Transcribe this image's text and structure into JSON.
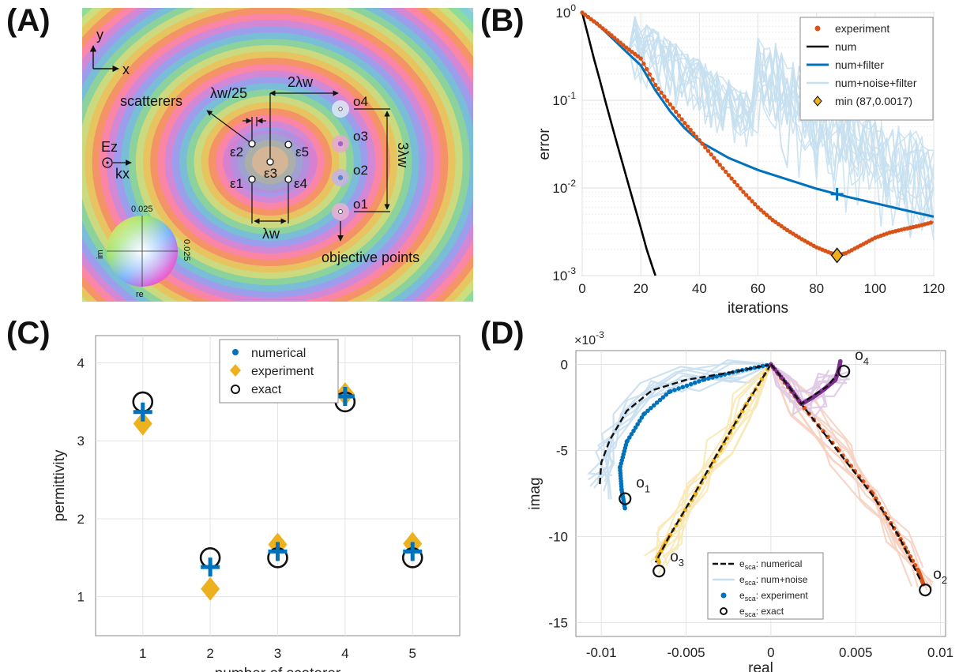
{
  "panels": {
    "A": {
      "label": "(A)",
      "axis_y": "y",
      "axis_x": "x",
      "scatterers_label": "scatterers",
      "spacing_small": "λw/25",
      "spacing_2lw": "2λw",
      "spacing_3lw": "3λw",
      "spacing_lw": "λw",
      "objective_label": "objective points",
      "source_E": "Ez",
      "source_k": "kx",
      "eps_labels": [
        "ε1",
        "ε2",
        "ε3",
        "ε4",
        "ε5"
      ],
      "obj_labels": [
        "o1",
        "o2",
        "o3",
        "o4"
      ],
      "colorwheel_top": "0.025",
      "colorwheel_right": "0.025",
      "colorwheel_im": "im",
      "colorwheel_re": "re"
    },
    "B": {
      "label": "(B)"
    },
    "C": {
      "label": "(C)"
    },
    "D": {
      "label": "(D)"
    }
  },
  "chart_data": [
    {
      "id": "B",
      "type": "line",
      "xlabel": "iterations",
      "ylabel": "error",
      "xlim": [
        0,
        120
      ],
      "ylim": [
        0.001,
        1
      ],
      "yscale": "log",
      "xticks": [
        0,
        20,
        40,
        60,
        80,
        100,
        120
      ],
      "yticks": [
        "10^0",
        "10^-1",
        "10^-2",
        "10^-3"
      ],
      "grid": true,
      "legend_position": "top-right",
      "legend": [
        "experiment",
        "num",
        "num+filter",
        "num+noise+filter",
        "min (87,0.0017)"
      ],
      "colors": {
        "experiment": "#d95319",
        "num": "#000000",
        "num_filter": "#0072bd",
        "noise": "#c6dff0",
        "min": "#edb120"
      },
      "series": [
        {
          "name": "experiment",
          "x": [
            0,
            5,
            10,
            15,
            20,
            25,
            30,
            35,
            40,
            45,
            50,
            55,
            60,
            65,
            70,
            75,
            80,
            85,
            87,
            90,
            95,
            100,
            105,
            110,
            115,
            120
          ],
          "y": [
            1,
            0.75,
            0.55,
            0.4,
            0.3,
            0.15,
            0.09,
            0.055,
            0.035,
            0.022,
            0.014,
            0.009,
            0.006,
            0.0043,
            0.0033,
            0.0026,
            0.0021,
            0.0018,
            0.0017,
            0.0018,
            0.0022,
            0.0027,
            0.0031,
            0.0034,
            0.0037,
            0.0041
          ]
        },
        {
          "name": "num",
          "x": [
            0,
            2,
            4,
            6,
            8,
            10,
            12,
            14,
            16,
            18,
            20,
            22,
            24,
            25
          ],
          "y": [
            1,
            0.55,
            0.3,
            0.17,
            0.095,
            0.054,
            0.031,
            0.018,
            0.0104,
            0.006,
            0.0035,
            0.002,
            0.00125,
            0.001
          ]
        },
        {
          "name": "num+filter",
          "x": [
            0,
            5,
            10,
            15,
            20,
            25,
            30,
            35,
            40,
            50,
            60,
            70,
            80,
            87,
            90,
            100,
            110,
            120
          ],
          "y": [
            1,
            0.75,
            0.52,
            0.36,
            0.25,
            0.13,
            0.075,
            0.048,
            0.034,
            0.022,
            0.016,
            0.0125,
            0.0098,
            0.0085,
            0.008,
            0.0067,
            0.0056,
            0.0047
          ]
        },
        {
          "name": "min (87,0.0017)",
          "x": [
            87
          ],
          "y": [
            0.0017
          ]
        }
      ],
      "annotations": [
        {
          "marker": "+",
          "x": 87,
          "y": 0.0085
        }
      ]
    },
    {
      "id": "C",
      "type": "scatter",
      "xlabel": "number of scaterer",
      "ylabel": "permittivity",
      "xlim": [
        0.3,
        5.7
      ],
      "ylim": [
        0.5,
        4.35
      ],
      "xticks": [
        1,
        2,
        3,
        4,
        5
      ],
      "yticks": [
        1,
        2,
        3,
        4
      ],
      "grid": true,
      "legend_position": "top-center",
      "categories": [
        1,
        2,
        3,
        4,
        5
      ],
      "series": [
        {
          "name": "numerical",
          "values": [
            3.37,
            1.38,
            1.58,
            3.57,
            1.58
          ]
        },
        {
          "name": "experiment",
          "values": [
            3.22,
            1.1,
            1.67,
            3.6,
            1.68
          ]
        },
        {
          "name": "exact",
          "values": [
            3.5,
            1.5,
            1.5,
            3.5,
            1.5
          ]
        }
      ]
    },
    {
      "id": "D",
      "type": "line",
      "xlabel": "real",
      "ylabel": "imag",
      "scale_label": "×10^-3",
      "xlim": [
        -0.0115,
        0.0103
      ],
      "ylim": [
        -15.8,
        0.8
      ],
      "xticks": [
        -0.01,
        -0.005,
        0,
        0.005,
        0.01
      ],
      "xtick_labels": [
        "-0.01",
        "-0.005",
        "0",
        "0.005",
        "0.01"
      ],
      "yticks": [
        0,
        -5,
        -10,
        -15
      ],
      "grid": true,
      "legend_position": "bottom-center",
      "legend": [
        "esca: numerical",
        "esca: num+noise",
        "esca: experiment",
        "esca: exact"
      ],
      "point_labels": [
        "o1",
        "o2",
        "o3",
        "o4"
      ],
      "series": [
        {
          "name": "o1",
          "color": "#0072bd",
          "numerical": {
            "x": [
              0,
              -0.002,
              -0.005,
              -0.007,
              -0.0085,
              -0.0095,
              -0.01,
              -0.0101
            ],
            "y": [
              0,
              -0.4,
              -0.9,
              -1.5,
              -2.7,
              -4.4,
              -5.7,
              -7.1
            ]
          },
          "experiment": {
            "x": [
              0,
              -0.002,
              -0.004,
              -0.006,
              -0.0075,
              -0.0085,
              -0.0089,
              -0.0088,
              -0.0086
            ],
            "y": [
              0,
              -0.4,
              -0.9,
              -1.6,
              -2.9,
              -4.5,
              -6.0,
              -7.3,
              -8.4
            ]
          },
          "exact": [
            -0.0086,
            -7.8
          ]
        },
        {
          "name": "o2",
          "color": "#d95319",
          "numerical": {
            "x": [
              0,
              0.0018,
              0.004,
              0.006,
              0.0075,
              0.0088
            ],
            "y": [
              0,
              -2.3,
              -5.1,
              -7.6,
              -9.9,
              -12.5
            ]
          },
          "experiment": {
            "x": [
              0,
              0.0017,
              0.004,
              0.006,
              0.0075,
              0.0087,
              0.009
            ],
            "y": [
              0,
              -2.2,
              -5.0,
              -7.5,
              -9.9,
              -12.0,
              -12.8
            ]
          },
          "exact": [
            0.0091,
            -13.1
          ]
        },
        {
          "name": "o3",
          "color": "#edb120",
          "numerical": {
            "x": [
              0,
              -0.0015,
              -0.003,
              -0.0045,
              -0.006,
              -0.0068
            ],
            "y": [
              0,
              -2.4,
              -4.9,
              -7.5,
              -10.0,
              -11.5
            ]
          },
          "experiment": {
            "x": [
              0,
              -0.0015,
              -0.003,
              -0.0045,
              -0.006,
              -0.0067,
              -0.0066
            ],
            "y": [
              0,
              -2.4,
              -5.0,
              -7.6,
              -10.0,
              -11.2,
              -11.5
            ]
          },
          "exact": [
            -0.0066,
            -12.0
          ]
        },
        {
          "name": "o4",
          "color": "#7e2f8e",
          "numerical": {
            "x": [
              0,
              0.001,
              0.0018,
              0.0025,
              0.0033,
              0.0039
            ],
            "y": [
              0,
              -1.2,
              -2.3,
              -1.8,
              -1.3,
              -0.6
            ]
          },
          "experiment": {
            "x": [
              0,
              0.001,
              0.0018,
              0.0025,
              0.0032,
              0.0038,
              0.004,
              0.0041
            ],
            "y": [
              0,
              -1.2,
              -2.3,
              -1.9,
              -1.4,
              -0.9,
              -0.3,
              0.2
            ]
          },
          "exact": [
            0.0043,
            -0.4
          ]
        }
      ]
    }
  ]
}
